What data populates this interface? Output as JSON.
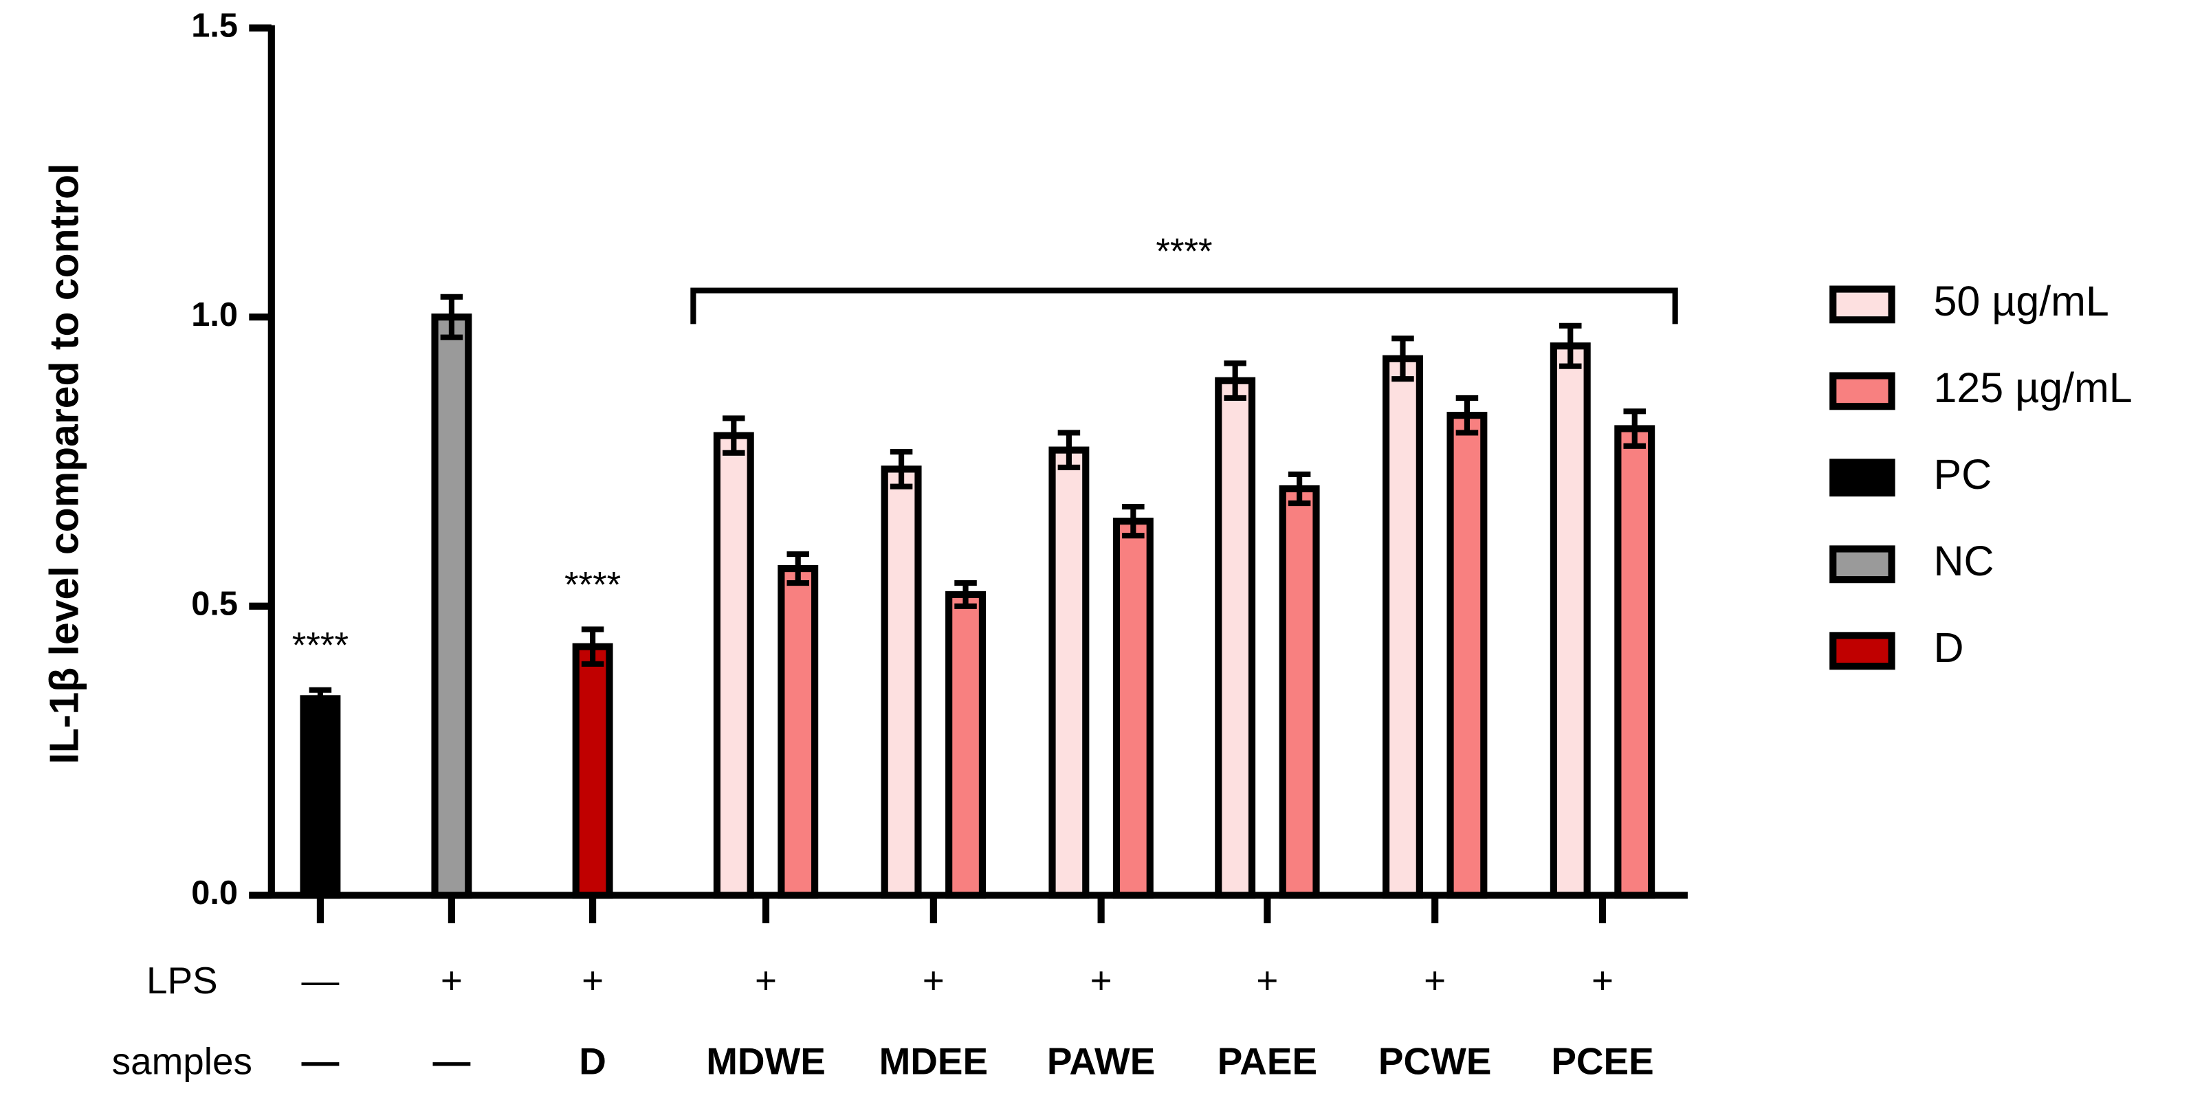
{
  "chart_data": {
    "type": "bar",
    "y_label": "IL-1β level compared to control",
    "ylim": [
      0,
      1.5
    ],
    "yticks": [
      {
        "value": 0,
        "label": "0.0"
      },
      0.5,
      {
        "value": 1,
        "label": "1.0"
      },
      1.5
    ],
    "rows": [
      {
        "label": "LPS",
        "values": [
          "—",
          "+",
          "+",
          "+",
          "+",
          "+",
          "+",
          "+",
          "+"
        ]
      },
      {
        "label": "samples",
        "values": [
          "—",
          "—",
          "D",
          "MDWE",
          "MDEE",
          "PAWE",
          "PAEE",
          "PCWE",
          "PCEE"
        ]
      }
    ],
    "series": [
      {
        "name": "50 µg/mL",
        "color": "#fde0e0",
        "values": [
          null,
          null,
          null,
          0.795,
          0.737,
          0.77,
          0.89,
          0.928,
          0.95
        ],
        "errors": [
          null,
          null,
          null,
          0.03,
          0.03,
          0.03,
          0.03,
          0.035,
          0.035
        ]
      },
      {
        "name": "125 µg/mL",
        "color": "#f88080",
        "values": [
          null,
          null,
          null,
          0.565,
          0.52,
          0.647,
          0.703,
          0.83,
          0.807
        ],
        "errors": [
          null,
          null,
          null,
          0.025,
          0.02,
          0.025,
          0.025,
          0.03,
          0.03
        ]
      },
      {
        "name": "PC",
        "color": "#000000",
        "values": [
          0.34,
          null,
          null,
          null,
          null,
          null,
          null,
          null,
          null
        ],
        "errors": [
          0.015,
          null,
          null,
          null,
          null,
          null,
          null,
          null,
          null
        ]
      },
      {
        "name": "NC",
        "color": "#9a9a9a",
        "values": [
          null,
          1.0,
          null,
          null,
          null,
          null,
          null,
          null,
          null
        ],
        "errors": [
          null,
          0.035,
          null,
          null,
          null,
          null,
          null,
          null,
          null
        ]
      },
      {
        "name": "D",
        "color": "#c00000",
        "values": [
          null,
          null,
          0.43,
          null,
          null,
          null,
          null,
          null,
          null
        ],
        "errors": [
          null,
          null,
          0.03,
          null,
          null,
          null,
          null,
          null,
          null
        ]
      }
    ],
    "annotations": [
      {
        "text": "****",
        "category": 0
      },
      {
        "text": "****",
        "category": 2
      },
      {
        "text": "****",
        "from": 3,
        "to": 8
      }
    ]
  }
}
